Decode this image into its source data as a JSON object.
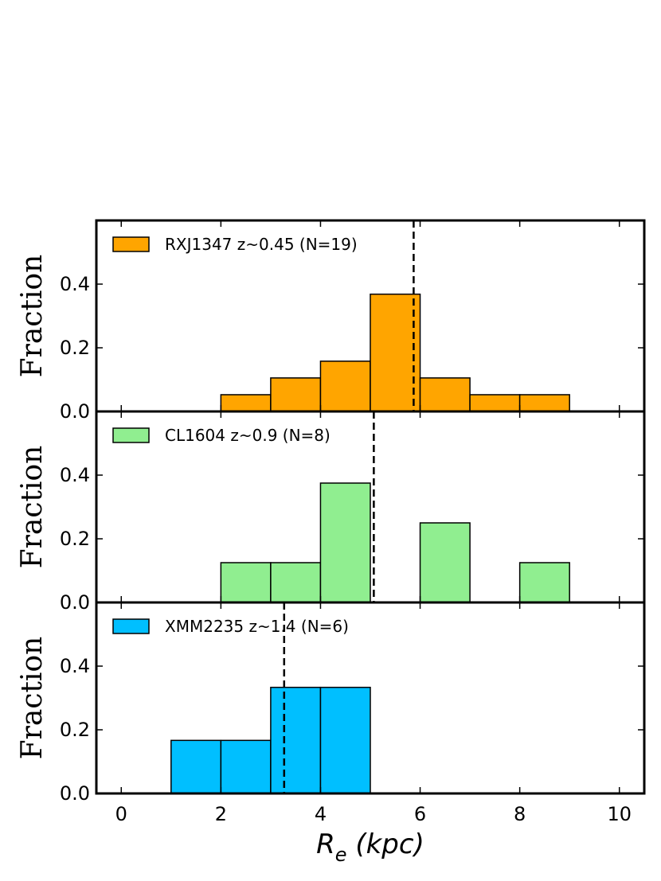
{
  "chart_data": [
    {
      "type": "bar",
      "title": "",
      "xlabel": "",
      "ylabel": "Fraction",
      "xlim": [
        -0.5,
        10.5
      ],
      "ylim": [
        0,
        0.6
      ],
      "yticks": [
        0.0,
        0.2,
        0.4
      ],
      "ytick_labels": [
        "0.0",
        "0.2",
        "0.4"
      ],
      "legend": {
        "label": "RXJ1347 z~0.45 (N=19)",
        "position": "top-left"
      },
      "color": "#ffa500",
      "bin_edges": [
        2,
        3,
        4,
        5,
        6,
        7,
        8,
        9
      ],
      "values": [
        0.0526,
        0.1053,
        0.1579,
        0.3684,
        0.1053,
        0.0526,
        0.0526
      ],
      "median_line": 5.87
    },
    {
      "type": "bar",
      "title": "",
      "xlabel": "",
      "ylabel": "Fraction",
      "xlim": [
        -0.5,
        10.5
      ],
      "ylim": [
        0,
        0.6
      ],
      "yticks": [
        0.0,
        0.2,
        0.4
      ],
      "ytick_labels": [
        "0.0",
        "0.2",
        "0.4"
      ],
      "legend": {
        "label": "CL1604 z~0.9 (N=8)",
        "position": "top-left"
      },
      "color": "#90ee90",
      "bin_edges": [
        2,
        3,
        4,
        5,
        6,
        7,
        8,
        9
      ],
      "values": [
        0.125,
        0.125,
        0.375,
        0.0,
        0.25,
        0.0,
        0.125
      ],
      "median_line": 5.07
    },
    {
      "type": "bar",
      "title": "",
      "xlabel": "R_e (kpc)",
      "ylabel": "Fraction",
      "xlim": [
        -0.5,
        10.5
      ],
      "ylim": [
        0,
        0.6
      ],
      "yticks": [
        0.0,
        0.2,
        0.4
      ],
      "ytick_labels": [
        "0.0",
        "0.2",
        "0.4"
      ],
      "xticks": [
        0,
        2,
        4,
        6,
        8,
        10
      ],
      "xtick_labels": [
        "0",
        "2",
        "4",
        "6",
        "8",
        "10"
      ],
      "legend": {
        "label": "XMM2235 z~1.4 (N=6)",
        "position": "top-left"
      },
      "color": "#00bfff",
      "bin_edges": [
        1,
        2,
        3,
        4,
        5
      ],
      "values": [
        0.1667,
        0.1667,
        0.3333,
        0.3333
      ],
      "median_line": 3.27
    }
  ]
}
